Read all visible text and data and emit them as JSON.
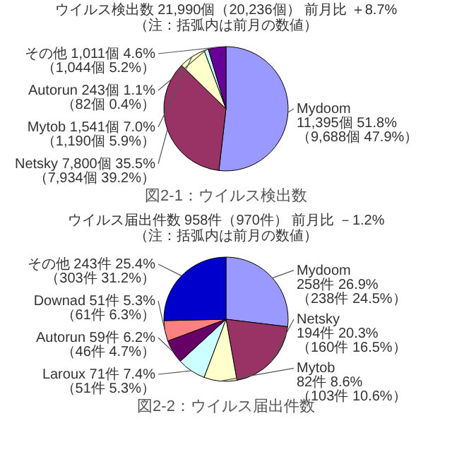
{
  "chart_data": [
    {
      "type": "pie",
      "title": "ウイルス検出数 21,990個（20,236個） 前月比 ＋8.7%",
      "subtitle": "（注：括弧内は前月の数値）",
      "categories": [
        "Mydoom",
        "Netsky",
        "Mytob",
        "Autorun",
        "その他"
      ],
      "values": [
        11395,
        7800,
        1541,
        243,
        1011
      ],
      "colors": [
        "#9999ff",
        "#993366",
        "#ffffcc",
        "#ccffff",
        "#660099"
      ],
      "value_labels": [
        "11,395個 51.8%\n（9,688個 47.9%）",
        "7,800個 35.5%\n（7,934個 39.2%）",
        "1,541個 7.0%\n（1,190個 5.9%）",
        "243個 1.1%\n（82個 0.4%）",
        "1,011個 4.6%\n（1,044個 5.2%）"
      ],
      "annotations": [
        "図2-1：ウイルス検出数"
      ]
    },
    {
      "type": "pie",
      "title": "ウイルス届出件数 958件（970件） 前月比 －1.2%",
      "subtitle": "（注：括弧内は前月の数値）",
      "categories": [
        "Mydoom",
        "Netsky",
        "Mytob",
        "Laroux",
        "Autorun",
        "Downad",
        "その他"
      ],
      "values": [
        258,
        194,
        82,
        71,
        59,
        51,
        243
      ],
      "colors": [
        "#9999ff",
        "#993366",
        "#ffffcc",
        "#ccffff",
        "#660066",
        "#ff8080",
        "#0000cc"
      ],
      "value_labels": [
        "258件 26.9%\n（238件 24.5%）",
        "194件 20.3%\n（160件 16.5%）",
        "82件 8.6%\n（103件 10.6%）",
        "71件 7.4%\n（51件 5.3%）",
        "59件 6.2%\n（46件 4.7%）",
        "51件 5.3%\n（61件 6.3%）",
        "243件 25.4%\n（303件 31.2%）"
      ],
      "annotations": [
        "図2-2：ウイルス届出件数"
      ]
    }
  ]
}
